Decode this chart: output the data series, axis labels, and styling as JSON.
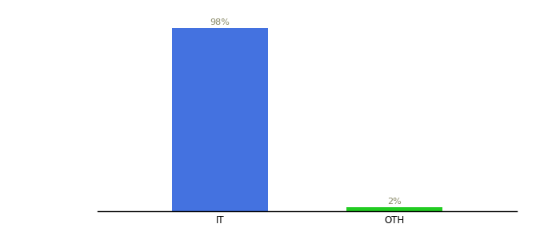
{
  "categories": [
    "IT",
    "OTH"
  ],
  "values": [
    98,
    2
  ],
  "bar_colors": [
    "#4472e0",
    "#22cc22"
  ],
  "label_color": "#888866",
  "ylim": [
    0,
    108
  ],
  "background_color": "#ffffff",
  "label_fontsize": 8,
  "tick_fontsize": 8.5,
  "bar_width": 0.55,
  "x_positions": [
    1,
    2
  ],
  "xlim": [
    0.3,
    2.7
  ]
}
